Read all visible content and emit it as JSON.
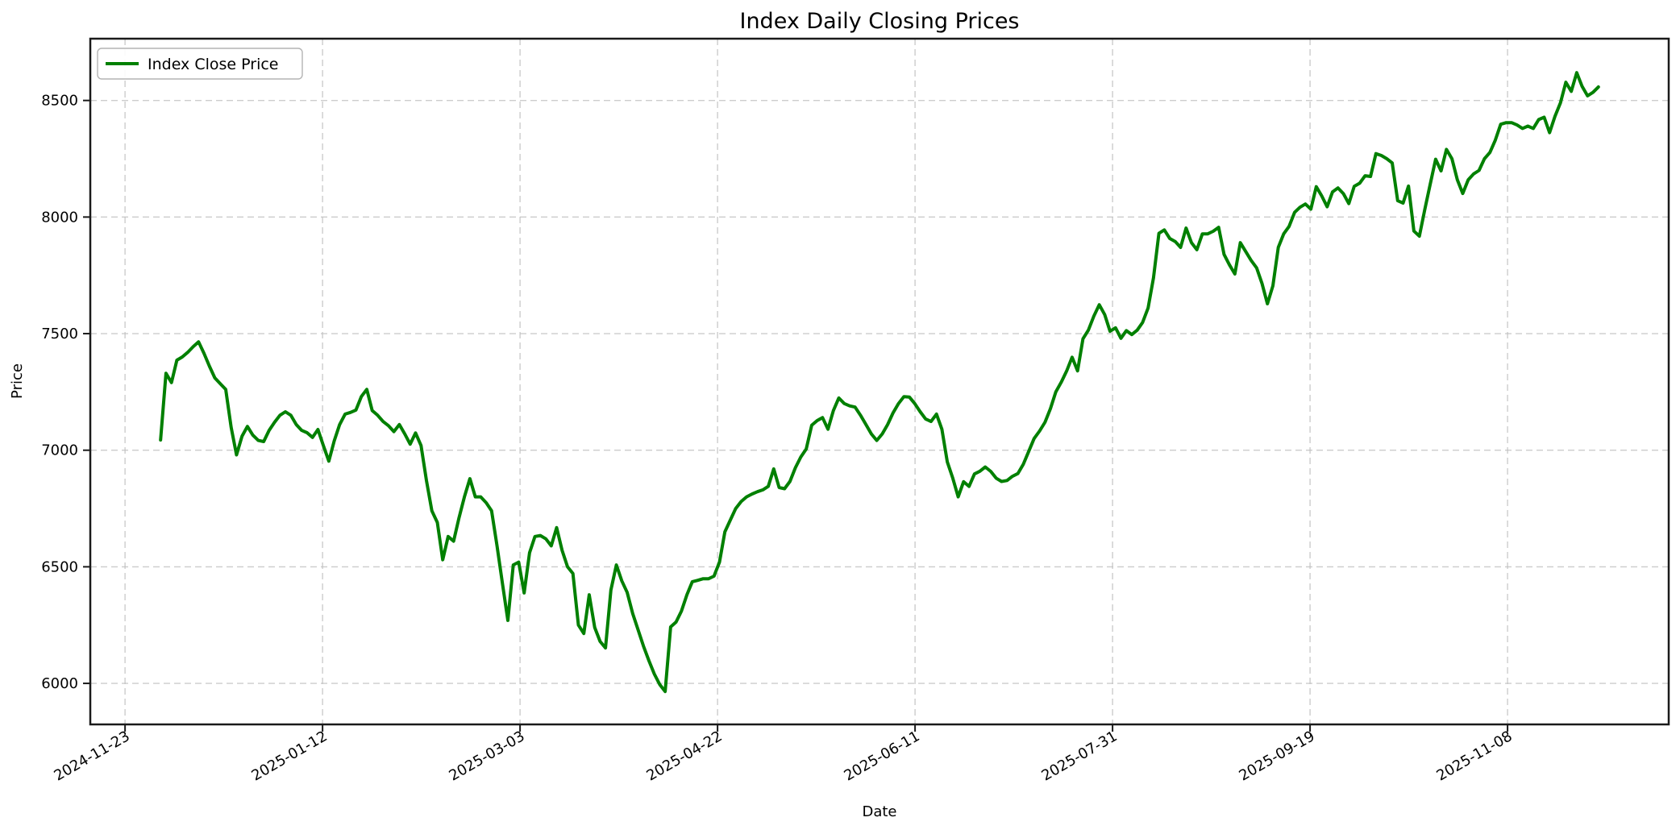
{
  "figure": {
    "background": "#ffffff",
    "spine_color": "#1a1a1a",
    "grid_color": "#bfbfbf",
    "tick_color": "#1a1a1a"
  },
  "chart_data": {
    "type": "line",
    "title": "Index Daily Closing Prices",
    "xlabel": "Date",
    "ylabel": "Price",
    "grid": true,
    "grid_style": "dashed",
    "legend_position": "upper left",
    "y_ticks": [
      6000,
      6500,
      7000,
      7500,
      8000,
      8500
    ],
    "x_ticks": [
      {
        "label": "2024-11-23",
        "day_offset": 0
      },
      {
        "label": "2025-01-12",
        "day_offset": 50
      },
      {
        "label": "2025-03-03",
        "day_offset": 100
      },
      {
        "label": "2025-04-22",
        "day_offset": 150
      },
      {
        "label": "2025-06-11",
        "day_offset": 200
      },
      {
        "label": "2025-07-31",
        "day_offset": 250
      },
      {
        "label": "2025-09-19",
        "day_offset": 300
      },
      {
        "label": "2025-11-08",
        "day_offset": 350
      }
    ],
    "xlim_days": [
      -8.8,
      390.8
    ],
    "ylim": [
      5824,
      8765
    ],
    "series": [
      {
        "name": "Index Close Price",
        "color": "#008000",
        "line_width": 4,
        "start_date": "2024-12-02",
        "end_date": "2025-12-01",
        "start_day_offset": 9,
        "end_day_offset": 373,
        "frequency": "daily closes (trading days)",
        "values": [
          7044,
          7330,
          7290,
          7386,
          7400,
          7420,
          7444,
          7465,
          7415,
          7360,
          7310,
          7285,
          7261,
          7099,
          6980,
          7060,
          7102,
          7065,
          7042,
          7037,
          7085,
          7120,
          7150,
          7165,
          7150,
          7110,
          7085,
          7075,
          7055,
          7089,
          7020,
          6953,
          7040,
          7110,
          7155,
          7162,
          7172,
          7230,
          7261,
          7170,
          7150,
          7123,
          7105,
          7080,
          7110,
          7070,
          7026,
          7074,
          7020,
          6870,
          6740,
          6690,
          6530,
          6630,
          6610,
          6710,
          6800,
          6878,
          6800,
          6800,
          6775,
          6740,
          6591,
          6430,
          6270,
          6508,
          6520,
          6388,
          6560,
          6630,
          6634,
          6620,
          6590,
          6668,
          6570,
          6500,
          6471,
          6250,
          6214,
          6380,
          6240,
          6180,
          6152,
          6400,
          6508,
          6440,
          6390,
          6300,
          6230,
          6160,
          6097,
          6040,
          5995,
          5965,
          6242,
          6263,
          6310,
          6380,
          6436,
          6442,
          6449,
          6449,
          6460,
          6520,
          6650,
          6700,
          6750,
          6780,
          6800,
          6812,
          6822,
          6830,
          6845,
          6920,
          6840,
          6835,
          6866,
          6925,
          6971,
          7005,
          7107,
          7127,
          7140,
          7090,
          7170,
          7224,
          7200,
          7190,
          7185,
          7150,
          7110,
          7070,
          7042,
          7070,
          7110,
          7160,
          7200,
          7230,
          7228,
          7200,
          7165,
          7134,
          7123,
          7155,
          7090,
          6950,
          6880,
          6800,
          6865,
          6845,
          6898,
          6910,
          6928,
          6909,
          6880,
          6866,
          6870,
          6888,
          6900,
          6940,
          6995,
          7050,
          7082,
          7120,
          7178,
          7250,
          7292,
          7340,
          7399,
          7340,
          7478,
          7515,
          7575,
          7624,
          7582,
          7510,
          7525,
          7480,
          7513,
          7496,
          7515,
          7548,
          7610,
          7740,
          7930,
          7945,
          7908,
          7895,
          7870,
          7953,
          7890,
          7860,
          7928,
          7928,
          7939,
          7956,
          7840,
          7795,
          7756,
          7890,
          7852,
          7814,
          7782,
          7715,
          7628,
          7705,
          7870,
          7928,
          7960,
          8020,
          8042,
          8056,
          8034,
          8130,
          8091,
          8044,
          8108,
          8125,
          8100,
          8058,
          8132,
          8145,
          8177,
          8174,
          8272,
          8264,
          8250,
          8232,
          8070,
          8060,
          8133,
          7940,
          7918,
          8032,
          8140,
          8248,
          8198,
          8290,
          8250,
          8160,
          8101,
          8160,
          8185,
          8200,
          8250,
          8277,
          8330,
          8398,
          8405,
          8405,
          8395,
          8380,
          8390,
          8380,
          8418,
          8428,
          8362,
          8432,
          8490,
          8578,
          8539,
          8619,
          8560,
          8520,
          8535,
          8558
        ]
      }
    ]
  }
}
